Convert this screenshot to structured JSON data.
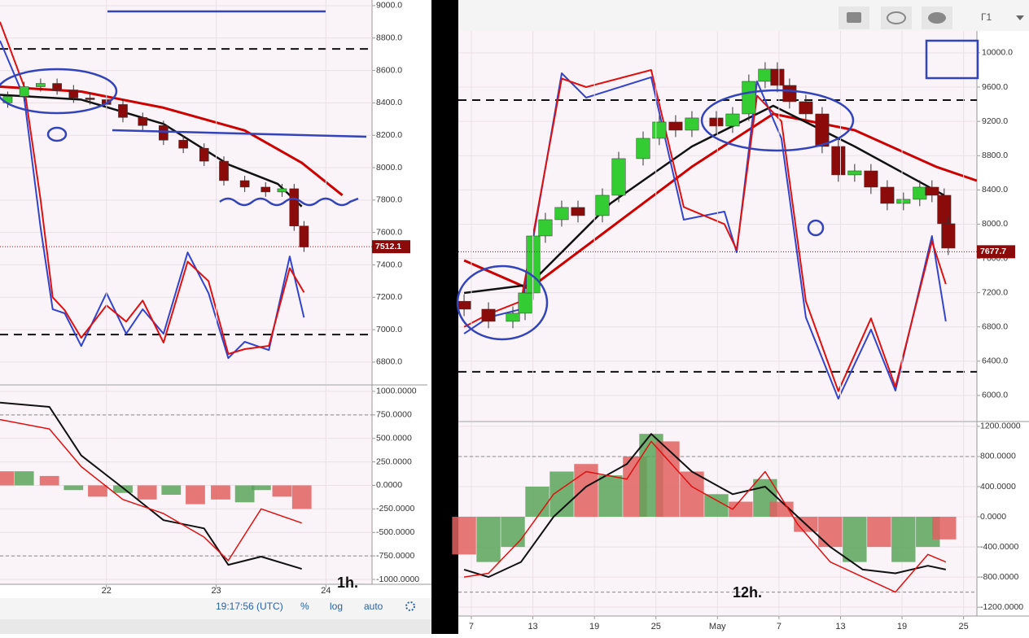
{
  "toolbar": {
    "clock": "19:17:56 (UTC)",
    "percent": "%",
    "log": "log",
    "auto": "auto",
    "interval": "Г1"
  },
  "chart_data": [
    {
      "type": "candlestick",
      "grid": true,
      "up_color": "#33cc33",
      "down_color": "#8b0a0a",
      "xlim": [
        21.03,
        24.42
      ],
      "ylim": [
        6664,
        9035
      ],
      "yticks": [
        {
          "value": 9000,
          "label": "9000.0"
        },
        {
          "value": 8800,
          "label": "8800.0"
        },
        {
          "value": 8600,
          "label": "8600.0"
        },
        {
          "value": 8400,
          "label": "8400.0"
        },
        {
          "value": 8200,
          "label": "8200.0"
        },
        {
          "value": 8000,
          "label": "8000.0"
        },
        {
          "value": 7800,
          "label": "7800.0"
        },
        {
          "value": 7600,
          "label": "7600.0"
        },
        {
          "value": 7400,
          "label": "7400.0"
        },
        {
          "value": 7200,
          "label": "7200.0"
        },
        {
          "value": 7000,
          "label": "7000.0"
        },
        {
          "value": 6800,
          "label": "6800.0"
        }
      ],
      "last_price": 7512.1,
      "levels": [
        8733,
        6970
      ],
      "x": [
        21.1,
        21.25,
        21.4,
        21.55,
        21.7,
        21.85,
        22.0,
        22.15,
        22.33,
        22.52,
        22.7,
        22.89,
        23.07,
        23.26,
        23.45,
        23.6,
        23.71,
        23.8
      ],
      "open": [
        8400,
        8440,
        8500,
        8520,
        8480,
        8430,
        8420,
        8390,
        8310,
        8260,
        8170,
        8120,
        8040,
        7920,
        7880,
        7850,
        7870,
        7640
      ],
      "high": [
        8470,
        8530,
        8550,
        8550,
        8510,
        8460,
        8450,
        8420,
        8340,
        8290,
        8200,
        8150,
        8070,
        7950,
        7910,
        7900,
        7900,
        7670
      ],
      "low": [
        8370,
        8410,
        8470,
        8450,
        8400,
        8390,
        8360,
        8280,
        8230,
        8140,
        8090,
        8010,
        7890,
        7850,
        7820,
        7820,
        7610,
        7480
      ],
      "close": [
        8440,
        8500,
        8520,
        8480,
        8430,
        8420,
        8390,
        8310,
        8260,
        8170,
        8120,
        8040,
        7920,
        7880,
        7850,
        7870,
        7640,
        7510
      ],
      "overlays": [
        {
          "color": "#cc0000",
          "width": 3,
          "x": [
            21.03,
            21.77,
            22.52,
            23.26,
            23.78,
            24.15
          ],
          "values": [
            8500,
            8470,
            8370,
            8230,
            8030,
            7830
          ]
        },
        {
          "color": "#111111",
          "width": 2.5,
          "x": [
            21.03,
            21.77,
            22.52,
            23.11,
            23.56,
            23.78
          ],
          "values": [
            8450,
            8420,
            8270,
            8020,
            7900,
            7760
          ]
        },
        {
          "color": "#3344cc",
          "width": 2,
          "x": [
            21.03,
            21.25,
            21.4,
            21.51,
            21.62,
            21.77,
            22.0,
            22.18,
            22.33,
            22.52,
            22.74,
            22.93,
            23.11,
            23.26,
            23.48,
            23.67,
            23.8
          ],
          "values": [
            8784,
            8432,
            7628,
            7126,
            7101,
            6899,
            7226,
            6975,
            7126,
            6975,
            7477,
            7226,
            6824,
            6925,
            6874,
            7452,
            7075
          ]
        },
        {
          "color": "#dd1111",
          "width": 2,
          "x": [
            21.03,
            21.25,
            21.4,
            21.51,
            21.62,
            21.77,
            22.0,
            22.18,
            22.33,
            22.52,
            22.74,
            22.93,
            23.11,
            23.26,
            23.48,
            23.67,
            23.8
          ],
          "values": [
            8900,
            8500,
            7800,
            7200,
            7120,
            6950,
            7150,
            7050,
            7180,
            6920,
            7420,
            7300,
            6850,
            6880,
            6900,
            7380,
            7230
          ]
        }
      ]
    },
    {
      "type": "histogram-oscillator",
      "grid": true,
      "annotation": "1h.",
      "xlim": [
        21.03,
        24.42
      ],
      "ylim": [
        -1052,
        1060
      ],
      "xticks": [
        22,
        23,
        24
      ],
      "yticks": [
        {
          "value": 1000,
          "label": "1000.0000"
        },
        {
          "value": 750,
          "label": "750.0000"
        },
        {
          "value": 500,
          "label": "500.0000"
        },
        {
          "value": 250,
          "label": "250.0000"
        },
        {
          "value": 0,
          "label": "0.0000"
        },
        {
          "value": -250,
          "label": "-250.0000"
        },
        {
          "value": -500,
          "label": "-500.0000"
        },
        {
          "value": -750,
          "label": "-750.0000"
        },
        {
          "value": -1000,
          "label": "-1000.0000"
        }
      ],
      "levels": [
        750,
        -750
      ],
      "x": [
        21.07,
        21.25,
        21.48,
        21.7,
        21.92,
        22.15,
        22.37,
        22.59,
        22.81,
        23.04,
        23.26,
        23.41,
        23.6,
        23.78
      ],
      "values": [
        150,
        150,
        100,
        -50,
        -120,
        -80,
        -150,
        -100,
        -200,
        -150,
        -180,
        -50,
        -120,
        -250
      ],
      "colors": [
        "#e06060",
        "#5aa55a",
        "#e06060",
        "#5aa55a",
        "#e06060",
        "#5aa55a",
        "#e06060",
        "#5aa55a",
        "#e06060",
        "#e06060",
        "#5aa55a",
        "#5aa55a",
        "#e06060",
        "#e06060"
      ],
      "overlays": [
        {
          "color": "#111111",
          "width": 2,
          "x": [
            21.03,
            21.48,
            21.77,
            22.15,
            22.52,
            22.89,
            23.11,
            23.41,
            23.78
          ],
          "values": [
            880,
            835,
            318,
            -26,
            -370,
            -457,
            -845,
            -758,
            -888
          ]
        },
        {
          "color": "#dd1111",
          "width": 1.5,
          "x": [
            21.03,
            21.48,
            21.77,
            22.15,
            22.52,
            22.89,
            23.11,
            23.41,
            23.78
          ],
          "values": [
            700,
            600,
            200,
            -150,
            -300,
            -550,
            -800,
            -250,
            -400
          ]
        }
      ]
    },
    {
      "type": "candlestick",
      "grid": true,
      "up_color": "#33cc33",
      "down_color": "#8b0a0a",
      "xlim": [
        5.73,
        56.3
      ],
      "ylim": [
        5705,
        10256
      ],
      "yticks": [
        {
          "value": 10000,
          "label": "10000.0"
        },
        {
          "value": 9600,
          "label": "9600.0"
        },
        {
          "value": 9200,
          "label": "9200.0"
        },
        {
          "value": 8800,
          "label": "8800.0"
        },
        {
          "value": 8400,
          "label": "8400.0"
        },
        {
          "value": 8000,
          "label": "8000.0"
        },
        {
          "value": 7600,
          "label": "7600.0"
        },
        {
          "value": 7200,
          "label": "7200.0"
        },
        {
          "value": 6800,
          "label": "6800.0"
        },
        {
          "value": 6400,
          "label": "6400.0"
        },
        {
          "value": 6000,
          "label": "6000.0"
        }
      ],
      "last_price": 7677.7,
      "levels": [
        9449,
        6276
      ],
      "x": [
        6.29,
        8.67,
        11.05,
        12.24,
        13.03,
        14.22,
        15.81,
        17.4,
        19.78,
        21.37,
        23.75,
        25.33,
        26.92,
        28.51,
        30.89,
        32.48,
        34.06,
        35.65,
        36.84,
        38.03,
        39.62,
        41.21,
        42.79,
        44.38,
        45.97,
        47.56,
        49.14,
        50.73,
        51.92,
        53.11,
        53.51
      ],
      "open": [
        7100,
        7007,
        6865,
        6960,
        7197,
        7862,
        8052,
        8195,
        8100,
        8337,
        8765,
        9002,
        9192,
        9097,
        9240,
        9145,
        9287,
        9667,
        9810,
        9620,
        9430,
        9287,
        8907,
        8575,
        8622,
        8432,
        8242,
        8290,
        8432,
        8337,
        8005
      ],
      "high": [
        7180,
        7087,
        7040,
        7277,
        7942,
        8132,
        8275,
        8275,
        8417,
        8845,
        9082,
        9272,
        9272,
        9320,
        9320,
        9367,
        9747,
        9890,
        9890,
        9700,
        9510,
        9367,
        8987,
        8702,
        8702,
        8512,
        8370,
        8512,
        8512,
        8417,
        8085
      ],
      "low": [
        6927,
        6785,
        6785,
        6880,
        7117,
        7782,
        7972,
        8020,
        8020,
        8257,
        8685,
        8922,
        9017,
        9017,
        9065,
        9065,
        9207,
        9587,
        9540,
        9350,
        9207,
        8827,
        8495,
        8495,
        8352,
        8162,
        8162,
        8210,
        8257,
        7925,
        7640
      ],
      "close": [
        7007,
        6865,
        6960,
        7197,
        7862,
        8052,
        8195,
        8100,
        8337,
        8765,
        9002,
        9192,
        9097,
        9240,
        9145,
        9287,
        9667,
        9810,
        9620,
        9430,
        9287,
        8907,
        8575,
        8622,
        8432,
        8242,
        8290,
        8432,
        8337,
        8005,
        7720
      ],
      "overlays": [
        {
          "color": "#cc0000",
          "width": 3,
          "x": [
            6.29,
            12.63,
            20.57,
            28.51,
            36.44,
            44.38,
            52.32,
            56.29
          ],
          "values": [
            7577,
            7245,
            7957,
            8670,
            9287,
            9097,
            8670,
            8508
          ]
        },
        {
          "color": "#111111",
          "width": 2.5,
          "x": [
            6.29,
            12.63,
            20.57,
            28.51,
            36.44,
            44.38,
            53.11
          ],
          "values": [
            7197,
            7292,
            8242,
            8907,
            9382,
            8907,
            8337
          ]
        },
        {
          "color": "#3344cc",
          "width": 2,
          "x": [
            6.29,
            8.67,
            11.84,
            15.81,
            18.19,
            24.54,
            27.71,
            31.68,
            32.87,
            34.86,
            37.24,
            39.62,
            42.79,
            45.97,
            48.35,
            51.92,
            53.27
          ],
          "values": [
            6722,
            6912,
            7007,
            9762,
            9477,
            9715,
            8052,
            8147,
            7672,
            9667,
            9002,
            6912,
            5962,
            6770,
            6057,
            7862,
            6865
          ]
        },
        {
          "color": "#dd1111",
          "width": 2,
          "x": [
            6.29,
            8.67,
            11.84,
            15.81,
            18.19,
            24.54,
            27.71,
            31.68,
            32.87,
            34.86,
            37.24,
            39.62,
            42.79,
            45.97,
            48.35,
            51.92,
            53.27
          ],
          "values": [
            6800,
            6950,
            7100,
            9700,
            9600,
            9800,
            8200,
            8000,
            7700,
            9500,
            9200,
            7100,
            6050,
            6900,
            6100,
            7800,
            7300
          ]
        }
      ]
    },
    {
      "type": "histogram-oscillator",
      "grid": true,
      "annotation": "12h.",
      "xlim": [
        5.73,
        56.3
      ],
      "ylim": [
        -1317,
        1253
      ],
      "xticks": [
        7,
        13,
        19,
        25,
        {
          "value": 31,
          "label": "May"
        },
        {
          "value": 37,
          "label": "7"
        },
        {
          "value": 43,
          "label": "13"
        },
        {
          "value": 49,
          "label": "19"
        },
        {
          "value": 55,
          "label": "25"
        }
      ],
      "yticks": [
        {
          "value": 1200,
          "label": "1200.0000"
        },
        {
          "value": 800,
          "label": "800.0000"
        },
        {
          "value": 400,
          "label": "400.0000"
        },
        {
          "value": 0,
          "label": "0.0000"
        },
        {
          "value": -400,
          "label": "-400.0000"
        },
        {
          "value": -800,
          "label": "-800.0000"
        },
        {
          "value": -1200,
          "label": "-1200.0000"
        }
      ],
      "levels": [
        800,
        -1000
      ],
      "x": [
        6.29,
        8.67,
        11.05,
        13.43,
        15.81,
        18.19,
        20.57,
        22.95,
        24.54,
        26.13,
        28.51,
        30.89,
        33.27,
        35.65,
        37.24,
        39.62,
        42.0,
        44.38,
        46.76,
        49.14,
        51.52,
        53.11
      ],
      "values": [
        -500,
        -600,
        -400,
        400,
        600,
        700,
        550,
        800,
        1100,
        1000,
        600,
        300,
        200,
        500,
        200,
        -200,
        -400,
        -600,
        -400,
        -600,
        -400,
        -300
      ],
      "colors": [
        "#e06060",
        "#5aa55a",
        "#5aa55a",
        "#5aa55a",
        "#5aa55a",
        "#e06060",
        "#5aa55a",
        "#e06060",
        "#5aa55a",
        "#e06060",
        "#e06060",
        "#5aa55a",
        "#e06060",
        "#5aa55a",
        "#e06060",
        "#e06060",
        "#e06060",
        "#5aa55a",
        "#e06060",
        "#5aa55a",
        "#5aa55a",
        "#e06060"
      ],
      "overlays": [
        {
          "color": "#111111",
          "width": 2,
          "x": [
            6.29,
            8.67,
            11.84,
            15.02,
            18.19,
            22.16,
            24.54,
            28.51,
            32.48,
            35.65,
            38.83,
            42.0,
            45.17,
            48.35,
            51.52,
            53.27
          ],
          "values": [
            -700,
            -800,
            -600,
            0,
            400,
            700,
            1100,
            600,
            300,
            400,
            0,
            -400,
            -700,
            -750,
            -650,
            -700
          ]
        },
        {
          "color": "#dd1111",
          "width": 1.5,
          "x": [
            6.29,
            8.67,
            11.84,
            15.02,
            18.19,
            22.16,
            24.54,
            28.51,
            32.48,
            35.65,
            38.83,
            42.0,
            45.17,
            48.35,
            51.52,
            53.27
          ],
          "values": [
            -800,
            -750,
            -300,
            300,
            600,
            500,
            1000,
            400,
            100,
            600,
            -100,
            -600,
            -800,
            -1000,
            -500,
            -600
          ]
        }
      ]
    }
  ]
}
